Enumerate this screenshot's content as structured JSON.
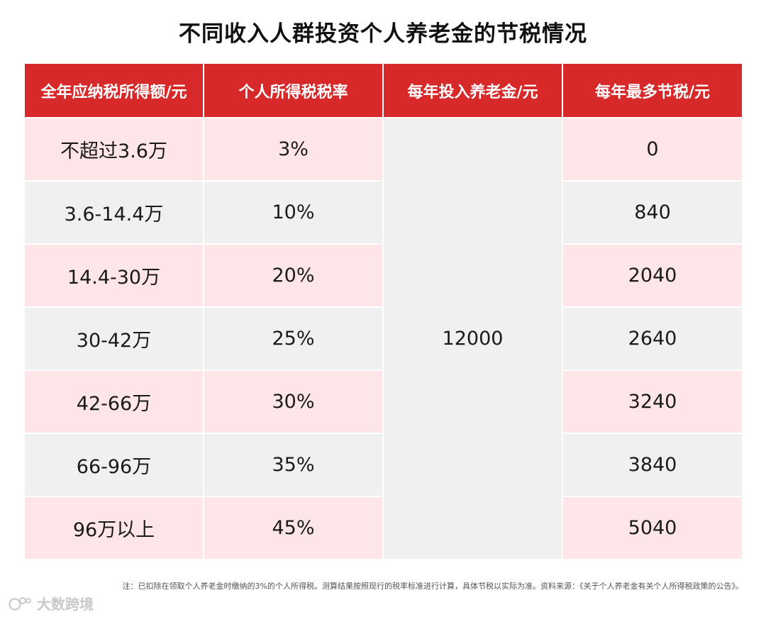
{
  "title": "不同收入人群投资个人养老金的节税情况",
  "table": {
    "headers": [
      "全年应纳税所得额/元",
      "个人所得税税率",
      "每年投入养老金/元",
      "每年最多节税/元"
    ],
    "investment": "12000",
    "rows": [
      {
        "income": "不超过3.6万",
        "rate": "3%",
        "saving": "0"
      },
      {
        "income": "3.6-14.4万",
        "rate": "10%",
        "saving": "840"
      },
      {
        "income": "14.4-30万",
        "rate": "20%",
        "saving": "2040"
      },
      {
        "income": "30-42万",
        "rate": "25%",
        "saving": "2640"
      },
      {
        "income": "42-66万",
        "rate": "30%",
        "saving": "3240"
      },
      {
        "income": "66-96万",
        "rate": "35%",
        "saving": "3840"
      },
      {
        "income": "96万以上",
        "rate": "45%",
        "saving": "5040"
      }
    ]
  },
  "chart_data": {
    "type": "table",
    "title": "不同收入人群投资个人养老金的节税情况",
    "columns": [
      "全年应纳税所得额/元",
      "个人所得税税率",
      "每年投入养老金/元",
      "每年最多节税/元"
    ],
    "rows": [
      [
        "不超过3.6万",
        "3%",
        "12000",
        "0"
      ],
      [
        "3.6-14.4万",
        "10%",
        "12000",
        "840"
      ],
      [
        "14.4-30万",
        "20%",
        "12000",
        "2040"
      ],
      [
        "30-42万",
        "25%",
        "12000",
        "2640"
      ],
      [
        "42-66万",
        "30%",
        "12000",
        "3240"
      ],
      [
        "66-96万",
        "35%",
        "12000",
        "3840"
      ],
      [
        "96万以上",
        "45%",
        "12000",
        "5040"
      ]
    ]
  },
  "note": "注：已扣除在领取个人养老金时缴纳的3%的个人所得税。测算结果按照现行的税率标准进行计算，具体节税以实际为准。资料来源：《关于个人养老金有关个人所得税政策的公告》。",
  "watermark": "大数跨境",
  "colors": {
    "header": "#d7282a",
    "row_pink": "#fde5e8",
    "row_grey": "#f1f0f0"
  }
}
